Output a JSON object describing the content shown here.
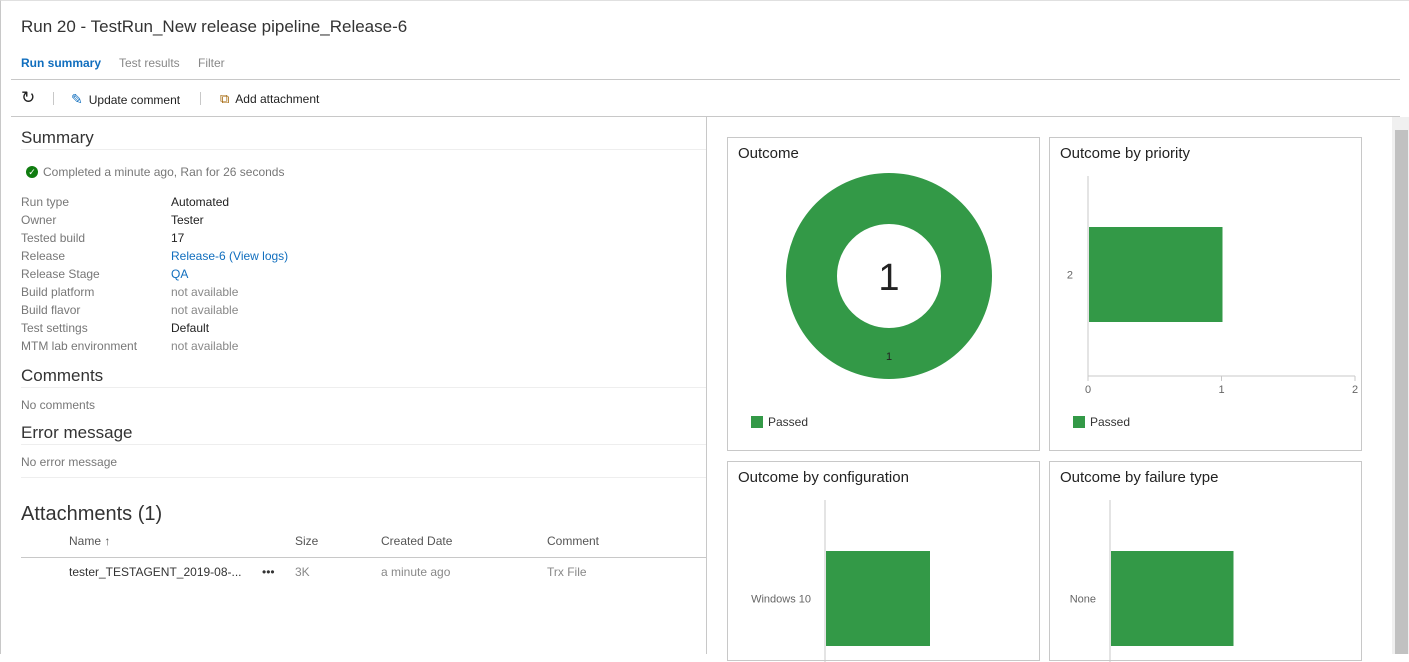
{
  "header": {
    "title": "Run 20 - TestRun_New release pipeline_Release-6",
    "tabs": [
      {
        "label": "Run summary"
      },
      {
        "label": "Test results"
      },
      {
        "label": "Filter"
      }
    ]
  },
  "toolbar": {
    "refresh_icon": "refresh-icon",
    "update_comment": "Update comment",
    "add_attachment": "Add attachment"
  },
  "summary": {
    "heading": "Summary",
    "status": "Completed a minute ago, Ran for 26 seconds",
    "status_color": "#107c10",
    "fields": [
      {
        "label": "Run type",
        "value": "Automated"
      },
      {
        "label": "Owner",
        "value": "Tester"
      },
      {
        "label": "Tested build",
        "value": "17"
      },
      {
        "label": "Release",
        "value": "Release-6 (View logs)"
      },
      {
        "label": "Release Stage",
        "value": "QA"
      },
      {
        "label": "Build platform",
        "value": "not available"
      },
      {
        "label": "Build flavor",
        "value": "not available"
      },
      {
        "label": "Test settings",
        "value": "Default"
      },
      {
        "label": "MTM lab environment",
        "value": "not available"
      }
    ]
  },
  "comments": {
    "heading": "Comments",
    "text": "No comments"
  },
  "error": {
    "heading": "Error message",
    "text": "No error message"
  },
  "attachments": {
    "heading": "Attachments (1)",
    "columns": [
      "Name ↑",
      "Size",
      "Created Date",
      "Comment"
    ],
    "rows": [
      {
        "name": "tester_TESTAGENT_2019-08-...",
        "more": "•••",
        "size": "3K",
        "created": "a minute ago",
        "comment": "Trx File"
      }
    ]
  },
  "chart_data": [
    {
      "type": "pie",
      "title": "Outcome",
      "categories": [
        "Passed"
      ],
      "values": [
        1
      ],
      "total_label": "1",
      "data_labels": [
        "1"
      ],
      "legend": [
        "Passed"
      ],
      "colors": [
        "#339947"
      ],
      "donut": true
    },
    {
      "type": "bar",
      "orientation": "horizontal",
      "title": "Outcome by priority",
      "categories": [
        "2"
      ],
      "series": [
        {
          "name": "Passed",
          "values": [
            1
          ]
        }
      ],
      "xlim": [
        0,
        2
      ],
      "xticks": [
        "0",
        "1",
        "2"
      ],
      "legend": [
        "Passed"
      ],
      "colors": [
        "#339947"
      ]
    },
    {
      "type": "bar",
      "orientation": "horizontal",
      "title": "Outcome by configuration",
      "categories": [
        "Windows 10"
      ],
      "series": [
        {
          "values": [
            1
          ]
        }
      ],
      "xlim": [
        0,
        2
      ],
      "colors": [
        "#339947"
      ]
    },
    {
      "type": "bar",
      "orientation": "horizontal",
      "title": "Outcome by failure type",
      "categories": [
        "None"
      ],
      "series": [
        {
          "values": [
            1
          ]
        }
      ],
      "xlim": [
        0,
        2
      ],
      "colors": [
        "#339947"
      ]
    }
  ]
}
